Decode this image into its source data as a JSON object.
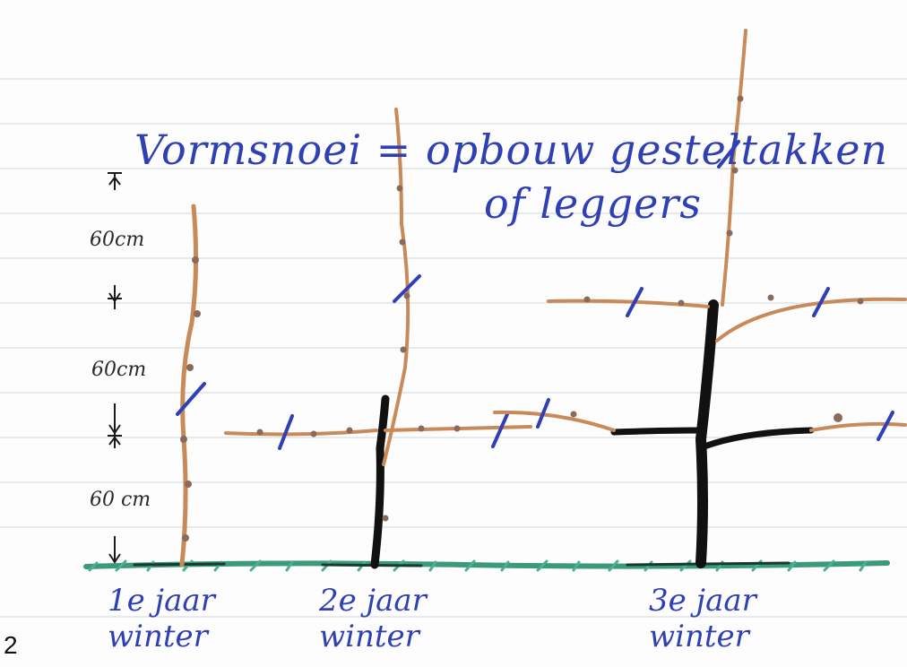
{
  "title": {
    "line1": "Vormsnoei = opbouw gesteltakken",
    "line2": "of leggers"
  },
  "measurements": [
    "60cm",
    "60cm",
    "60 cm"
  ],
  "years": [
    {
      "label": "1e jaar",
      "season": "winter"
    },
    {
      "label": "2e jaar",
      "season": "winter"
    },
    {
      "label": "3e jaar",
      "season": "winter"
    }
  ],
  "page_number": "2",
  "colors": {
    "ink_blue": "#2f3fb4",
    "new_wood": "#c98a5a",
    "old_wood": "#111111",
    "grass": "#3a9a7a",
    "paper_line": "#dfe3e8"
  }
}
